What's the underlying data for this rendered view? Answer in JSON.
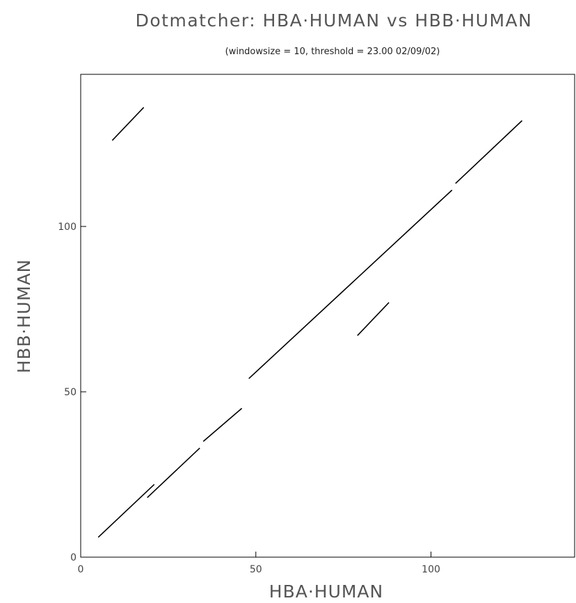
{
  "chart_data": {
    "type": "scatter",
    "title": "Dotmatcher: HBA·HUMAN vs HBB·HUMAN",
    "subtitle": "(windowsize = 10, threshold = 23.00  02/09/02)",
    "xlabel": "HBA·HUMAN",
    "ylabel": "HBB·HUMAN",
    "xlim": [
      0,
      141
    ],
    "ylim": [
      0,
      146
    ],
    "xticks": [
      "0",
      "50",
      "100"
    ],
    "yticks": [
      "0",
      "50",
      "100"
    ],
    "grid": false,
    "segments": [
      {
        "x": [
          5,
          21
        ],
        "y": [
          6,
          22
        ]
      },
      {
        "x": [
          19,
          34
        ],
        "y": [
          18,
          33
        ]
      },
      {
        "x": [
          35,
          46
        ],
        "y": [
          35,
          45
        ]
      },
      {
        "x": [
          48,
          106
        ],
        "y": [
          54,
          111
        ]
      },
      {
        "x": [
          107,
          126
        ],
        "y": [
          113,
          132
        ]
      },
      {
        "x": [
          79,
          88
        ],
        "y": [
          67,
          77
        ]
      },
      {
        "x": [
          9,
          18
        ],
        "y": [
          126,
          136
        ]
      }
    ]
  }
}
